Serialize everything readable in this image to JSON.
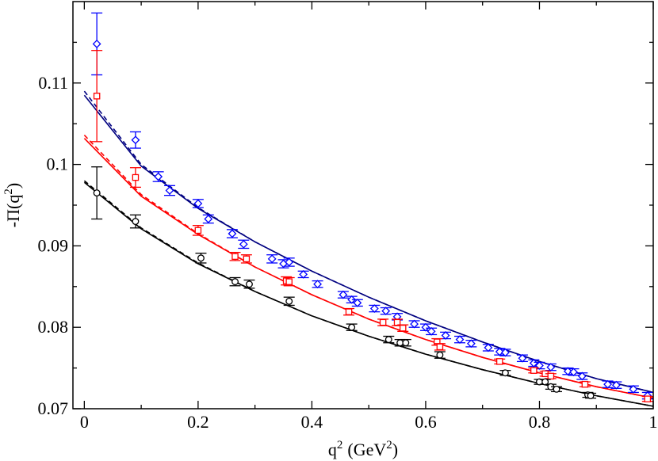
{
  "chart_data": {
    "type": "scatter",
    "xlabel": "q",
    "xlabel_sup": "2",
    "xlabel_units": "(GeV",
    "xlabel_units_sup": "2",
    "xlabel_units_end": ")",
    "ylabel": "-Π(q",
    "ylabel_sup": "2",
    "ylabel_end": ")",
    "xlim": [
      -0.02,
      1.0
    ],
    "ylim": [
      0.07,
      0.12
    ],
    "xticks": [
      0,
      0.2,
      0.4,
      0.6,
      0.8,
      1
    ],
    "xtick_labels": [
      "0",
      "0.2",
      "0.4",
      "0.6",
      "0.8",
      "1"
    ],
    "yticks": [
      0.07,
      0.08,
      0.09,
      0.1,
      0.11
    ],
    "ytick_labels": [
      "0.07",
      "0.08",
      "0.09",
      "0.1",
      "0.11"
    ],
    "grid": false,
    "colors": {
      "blue": "#0000ff",
      "red": "#ff0000",
      "black": "#000000",
      "navy": "#000080"
    },
    "series": [
      {
        "marker": "diamond",
        "color": "#0000ff",
        "points": [
          [
            0.022,
            0.1148,
            0.0038
          ],
          [
            0.09,
            0.103,
            0.001
          ],
          [
            0.13,
            0.0985,
            0.0006
          ],
          [
            0.15,
            0.0968,
            0.0006
          ],
          [
            0.2,
            0.0952,
            0.0005
          ],
          [
            0.218,
            0.0933,
            0.0005
          ],
          [
            0.26,
            0.0915,
            0.0005
          ],
          [
            0.28,
            0.0902,
            0.0005
          ],
          [
            0.33,
            0.0884,
            0.0005
          ],
          [
            0.35,
            0.0878,
            0.0005
          ],
          [
            0.36,
            0.088,
            0.0005
          ],
          [
            0.385,
            0.0865,
            0.0004
          ],
          [
            0.41,
            0.0853,
            0.0004
          ],
          [
            0.455,
            0.084,
            0.0004
          ],
          [
            0.47,
            0.0834,
            0.0004
          ],
          [
            0.48,
            0.083,
            0.0004
          ],
          [
            0.51,
            0.0823,
            0.0004
          ],
          [
            0.53,
            0.082,
            0.0004
          ],
          [
            0.55,
            0.0813,
            0.0004
          ],
          [
            0.58,
            0.0804,
            0.0004
          ],
          [
            0.6,
            0.08,
            0.0004
          ],
          [
            0.61,
            0.0795,
            0.0004
          ],
          [
            0.635,
            0.079,
            0.0004
          ],
          [
            0.66,
            0.0785,
            0.0004
          ],
          [
            0.68,
            0.078,
            0.0004
          ],
          [
            0.71,
            0.0775,
            0.0004
          ],
          [
            0.73,
            0.077,
            0.0004
          ],
          [
            0.74,
            0.0769,
            0.0004
          ],
          [
            0.77,
            0.0762,
            0.0004
          ],
          [
            0.79,
            0.0756,
            0.0004
          ],
          [
            0.8,
            0.0753,
            0.0004
          ],
          [
            0.82,
            0.0751,
            0.0004
          ],
          [
            0.85,
            0.0746,
            0.0004
          ],
          [
            0.86,
            0.0745,
            0.0004
          ],
          [
            0.875,
            0.074,
            0.0004
          ],
          [
            0.92,
            0.073,
            0.0004
          ],
          [
            0.935,
            0.0729,
            0.0004
          ],
          [
            0.965,
            0.0724,
            0.0004
          ],
          [
            0.99,
            0.0716,
            0.0004
          ]
        ]
      },
      {
        "marker": "square",
        "color": "#ff0000",
        "points": [
          [
            0.022,
            0.1084,
            0.0056
          ],
          [
            0.09,
            0.0984,
            0.0012
          ],
          [
            0.2,
            0.0919,
            0.0006
          ],
          [
            0.265,
            0.0887,
            0.0005
          ],
          [
            0.285,
            0.0884,
            0.0005
          ],
          [
            0.355,
            0.0857,
            0.0005
          ],
          [
            0.36,
            0.0856,
            0.0005
          ],
          [
            0.465,
            0.0819,
            0.0004
          ],
          [
            0.525,
            0.0806,
            0.0004
          ],
          [
            0.55,
            0.0806,
            0.0004
          ],
          [
            0.56,
            0.0799,
            0.0004
          ],
          [
            0.62,
            0.0782,
            0.0004
          ],
          [
            0.625,
            0.0776,
            0.0004
          ],
          [
            0.73,
            0.0758,
            0.0003
          ],
          [
            0.79,
            0.0747,
            0.0003
          ],
          [
            0.81,
            0.0743,
            0.0003
          ],
          [
            0.82,
            0.074,
            0.0003
          ],
          [
            0.88,
            0.073,
            0.0003
          ],
          [
            0.99,
            0.0712,
            0.0003
          ]
        ]
      },
      {
        "marker": "circle",
        "color": "#000000",
        "points": [
          [
            0.022,
            0.0965,
            0.0032
          ],
          [
            0.09,
            0.093,
            0.0008
          ],
          [
            0.205,
            0.0885,
            0.0006
          ],
          [
            0.265,
            0.0856,
            0.0005
          ],
          [
            0.29,
            0.0853,
            0.0005
          ],
          [
            0.36,
            0.0832,
            0.0005
          ],
          [
            0.47,
            0.08,
            0.0004
          ],
          [
            0.535,
            0.0785,
            0.0004
          ],
          [
            0.555,
            0.0781,
            0.0004
          ],
          [
            0.565,
            0.0781,
            0.0004
          ],
          [
            0.625,
            0.0766,
            0.0004
          ],
          [
            0.74,
            0.0744,
            0.0003
          ],
          [
            0.8,
            0.0733,
            0.0003
          ],
          [
            0.81,
            0.0733,
            0.0003
          ],
          [
            0.82,
            0.0727,
            0.0003
          ],
          [
            0.83,
            0.0724,
            0.0003
          ],
          [
            0.885,
            0.0717,
            0.0003
          ],
          [
            0.89,
            0.0716,
            0.0003
          ]
        ]
      }
    ],
    "curves": [
      {
        "color": "#000080",
        "style": "solid",
        "x": [
          0,
          0.1,
          0.2,
          0.3,
          0.4,
          0.5,
          0.6,
          0.7,
          0.8,
          0.9,
          1.0
        ],
        "y": [
          0.1085,
          0.0998,
          0.0946,
          0.0905,
          0.0869,
          0.0837,
          0.0808,
          0.0782,
          0.0758,
          0.0737,
          0.072
        ]
      },
      {
        "color": "#000080",
        "style": "dashed",
        "x": [
          0,
          0.1,
          0.2,
          0.3,
          0.4,
          0.5,
          0.6,
          0.7,
          0.8,
          0.9,
          1.0
        ],
        "y": [
          0.109,
          0.1,
          0.0947,
          0.0905,
          0.0869,
          0.0837,
          0.0808,
          0.0782,
          0.0758,
          0.0737,
          0.072
        ]
      },
      {
        "color": "#ff0000",
        "style": "solid",
        "x": [
          0,
          0.1,
          0.2,
          0.3,
          0.4,
          0.5,
          0.6,
          0.7,
          0.8,
          0.9,
          1.0
        ],
        "y": [
          0.1032,
          0.0961,
          0.0914,
          0.0874,
          0.084,
          0.081,
          0.0785,
          0.0763,
          0.0744,
          0.0727,
          0.0713
        ]
      },
      {
        "color": "#ff0000",
        "style": "dashed",
        "x": [
          0,
          0.1,
          0.2,
          0.3,
          0.4,
          0.5,
          0.6,
          0.7,
          0.8,
          0.9,
          1.0
        ],
        "y": [
          0.1036,
          0.0963,
          0.0915,
          0.0874,
          0.084,
          0.081,
          0.0785,
          0.0763,
          0.0744,
          0.0727,
          0.0713
        ]
      },
      {
        "color": "#000000",
        "style": "solid",
        "x": [
          0,
          0.1,
          0.2,
          0.3,
          0.4,
          0.5,
          0.6,
          0.7,
          0.8,
          0.9,
          1.0
        ],
        "y": [
          0.0978,
          0.0921,
          0.0878,
          0.0844,
          0.0814,
          0.0789,
          0.0767,
          0.0748,
          0.0731,
          0.0716,
          0.0703
        ]
      },
      {
        "color": "#000000",
        "style": "dashed",
        "x": [
          0,
          0.1,
          0.2,
          0.3,
          0.4,
          0.5,
          0.6,
          0.7,
          0.8,
          0.9,
          1.0
        ],
        "y": [
          0.098,
          0.0922,
          0.0879,
          0.0844,
          0.0814,
          0.0789,
          0.0767,
          0.0748,
          0.0731,
          0.0716,
          0.0703
        ]
      }
    ]
  }
}
